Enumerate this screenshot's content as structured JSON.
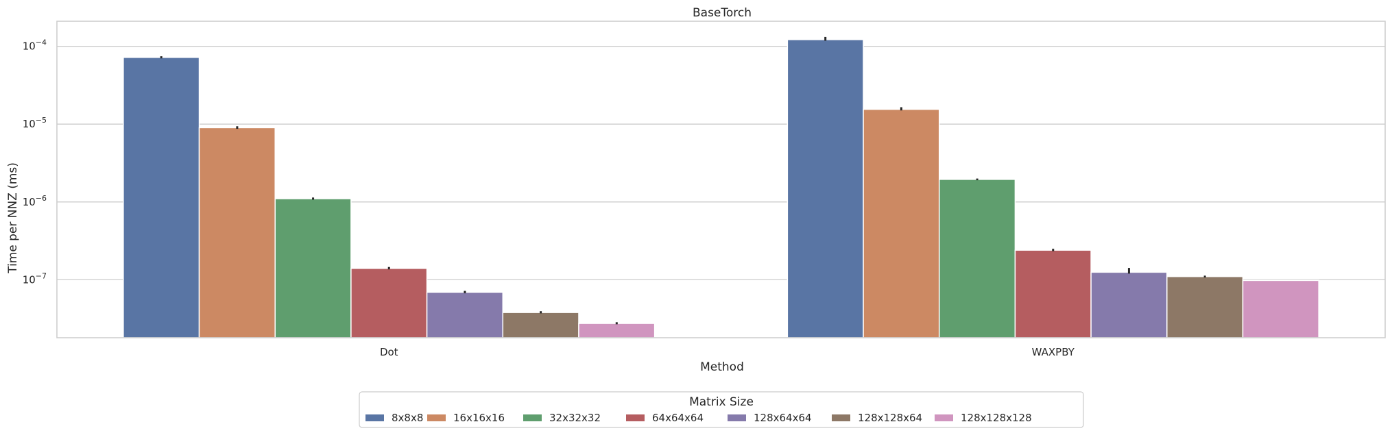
{
  "chart_data": {
    "type": "bar",
    "title": "BaseTorch",
    "xlabel": "Method",
    "ylabel": "Time per NNZ (ms)",
    "yscale": "log",
    "ylim": [
      1.8e-08,
      0.00021
    ],
    "yticks": [
      {
        "value": 1e-07,
        "label": "10",
        "exp": "−7"
      },
      {
        "value": 1e-06,
        "label": "10",
        "exp": "−6"
      },
      {
        "value": 1e-05,
        "label": "10",
        "exp": "−5"
      },
      {
        "value": 0.0001,
        "label": "10",
        "exp": "−4"
      }
    ],
    "grid": true,
    "categories": [
      "Dot",
      "WAXPBY"
    ],
    "legend": {
      "title": "Matrix Size",
      "placement": "below-center"
    },
    "series": [
      {
        "name": "8x8x8",
        "color": "#5975a4",
        "values": [
          7.2e-05,
          0.000122
        ],
        "err": [
          [
            7e-05,
            7.45e-05
          ],
          [
            0.000118,
            0.000132
          ]
        ]
      },
      {
        "name": "16x16x16",
        "color": "#cc8963",
        "values": [
          9e-06,
          1.55e-05
        ],
        "err": [
          [
            8.7e-06,
            9.4e-06
          ],
          [
            1.5e-05,
            1.65e-05
          ]
        ]
      },
      {
        "name": "32x32x32",
        "color": "#5f9e6e",
        "values": [
          1.1e-06,
          1.95e-06
        ],
        "err": [
          [
            1.07e-06,
            1.14e-06
          ],
          [
            1.9e-06,
            2e-06
          ]
        ]
      },
      {
        "name": "64x64x64",
        "color": "#b55d60",
        "values": [
          1.4e-07,
          2.4e-07
        ],
        "err": [
          [
            1.36e-07,
            1.46e-07
          ],
          [
            2.33e-07,
            2.5e-07
          ]
        ]
      },
      {
        "name": "128x64x64",
        "color": "#857aab",
        "values": [
          6.9e-08,
          1.25e-07
        ],
        "err": [
          [
            6.7e-08,
            7.2e-08
          ],
          [
            1.2e-07,
            1.42e-07
          ]
        ]
      },
      {
        "name": "128x128x64",
        "color": "#8d7866",
        "values": [
          3.8e-08,
          1.1e-07
        ],
        "err": [
          [
            3.7e-08,
            3.95e-08
          ],
          [
            1.07e-07,
            1.13e-07
          ]
        ]
      },
      {
        "name": "128x128x128",
        "color": "#d095bf",
        "values": [
          2.75e-08,
          9.8e-08
        ],
        "err": [
          [
            2.68e-08,
            2.85e-08
          ],
          [
            null,
            null
          ]
        ]
      }
    ]
  }
}
